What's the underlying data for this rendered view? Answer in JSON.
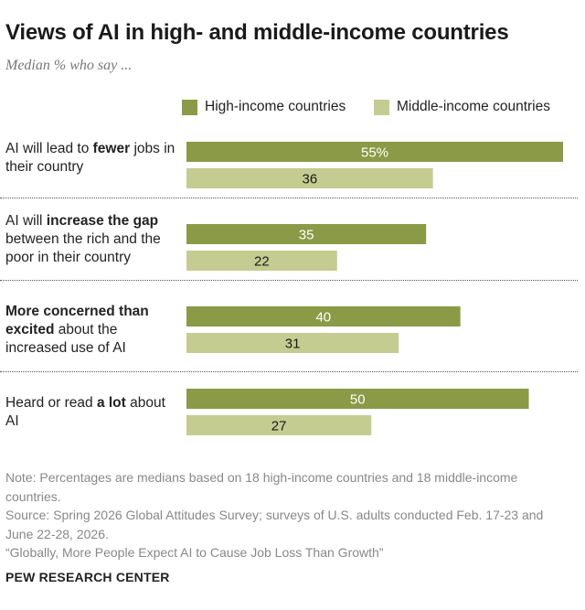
{
  "header": {
    "title": "Views of AI in high- and middle-income countries",
    "subtitle": "Median % who say ..."
  },
  "legend": {
    "high": "High-income countries",
    "middle": "Middle-income countries"
  },
  "rows": [
    {
      "pre": "AI will lead to ",
      "bold": "fewer",
      "post": " jobs in their country"
    },
    {
      "pre": "AI will ",
      "bold": "increase the gap",
      "post": " between the rich and the poor in their country"
    },
    {
      "pre": "",
      "bold": "More concerned than excited",
      "post": " about the increased use of AI"
    },
    {
      "pre": "Heard or read ",
      "bold": "a lot",
      "post": " about AI"
    }
  ],
  "chart_data": {
    "type": "bar",
    "orientation": "horizontal",
    "title": "Views of AI in high- and middle-income countries",
    "subtitle": "Median % who say ...",
    "categories": [
      "AI will lead to fewer jobs in their country",
      "AI will increase the gap between the rich and the poor in their country",
      "More concerned than excited about the increased use of AI",
      "Heard or read a lot about AI"
    ],
    "series": [
      {
        "name": "High-income countries",
        "values": [
          55,
          35,
          40,
          50
        ],
        "labels": [
          "55%",
          "35",
          "40",
          "50"
        ],
        "color": "#8b9a46"
      },
      {
        "name": "Middle-income countries",
        "values": [
          36,
          22,
          31,
          27
        ],
        "labels": [
          "36",
          "22",
          "31",
          "27"
        ],
        "color": "#c5cc91"
      }
    ],
    "xlim": [
      0,
      55
    ],
    "legend_position": "top",
    "grid": false
  },
  "colors": {
    "high_bar": "#8b9a46",
    "middle_bar": "#c5cc91",
    "high_label_text": "#ffffff",
    "middle_label_text": "#1a1a1a"
  },
  "notes": {
    "note": "Note: Percentages are medians based on 18 high-income countries and 18 middle-income countries.",
    "source": "Source: Spring 2026 Global Attitudes Survey; surveys of U.S. adults conducted Feb. 17-23 and June 22-28, 2026.",
    "report": "“Globally, More People Expect AI to Cause Job Loss Than Growth”"
  },
  "brand": "PEW RESEARCH CENTER"
}
